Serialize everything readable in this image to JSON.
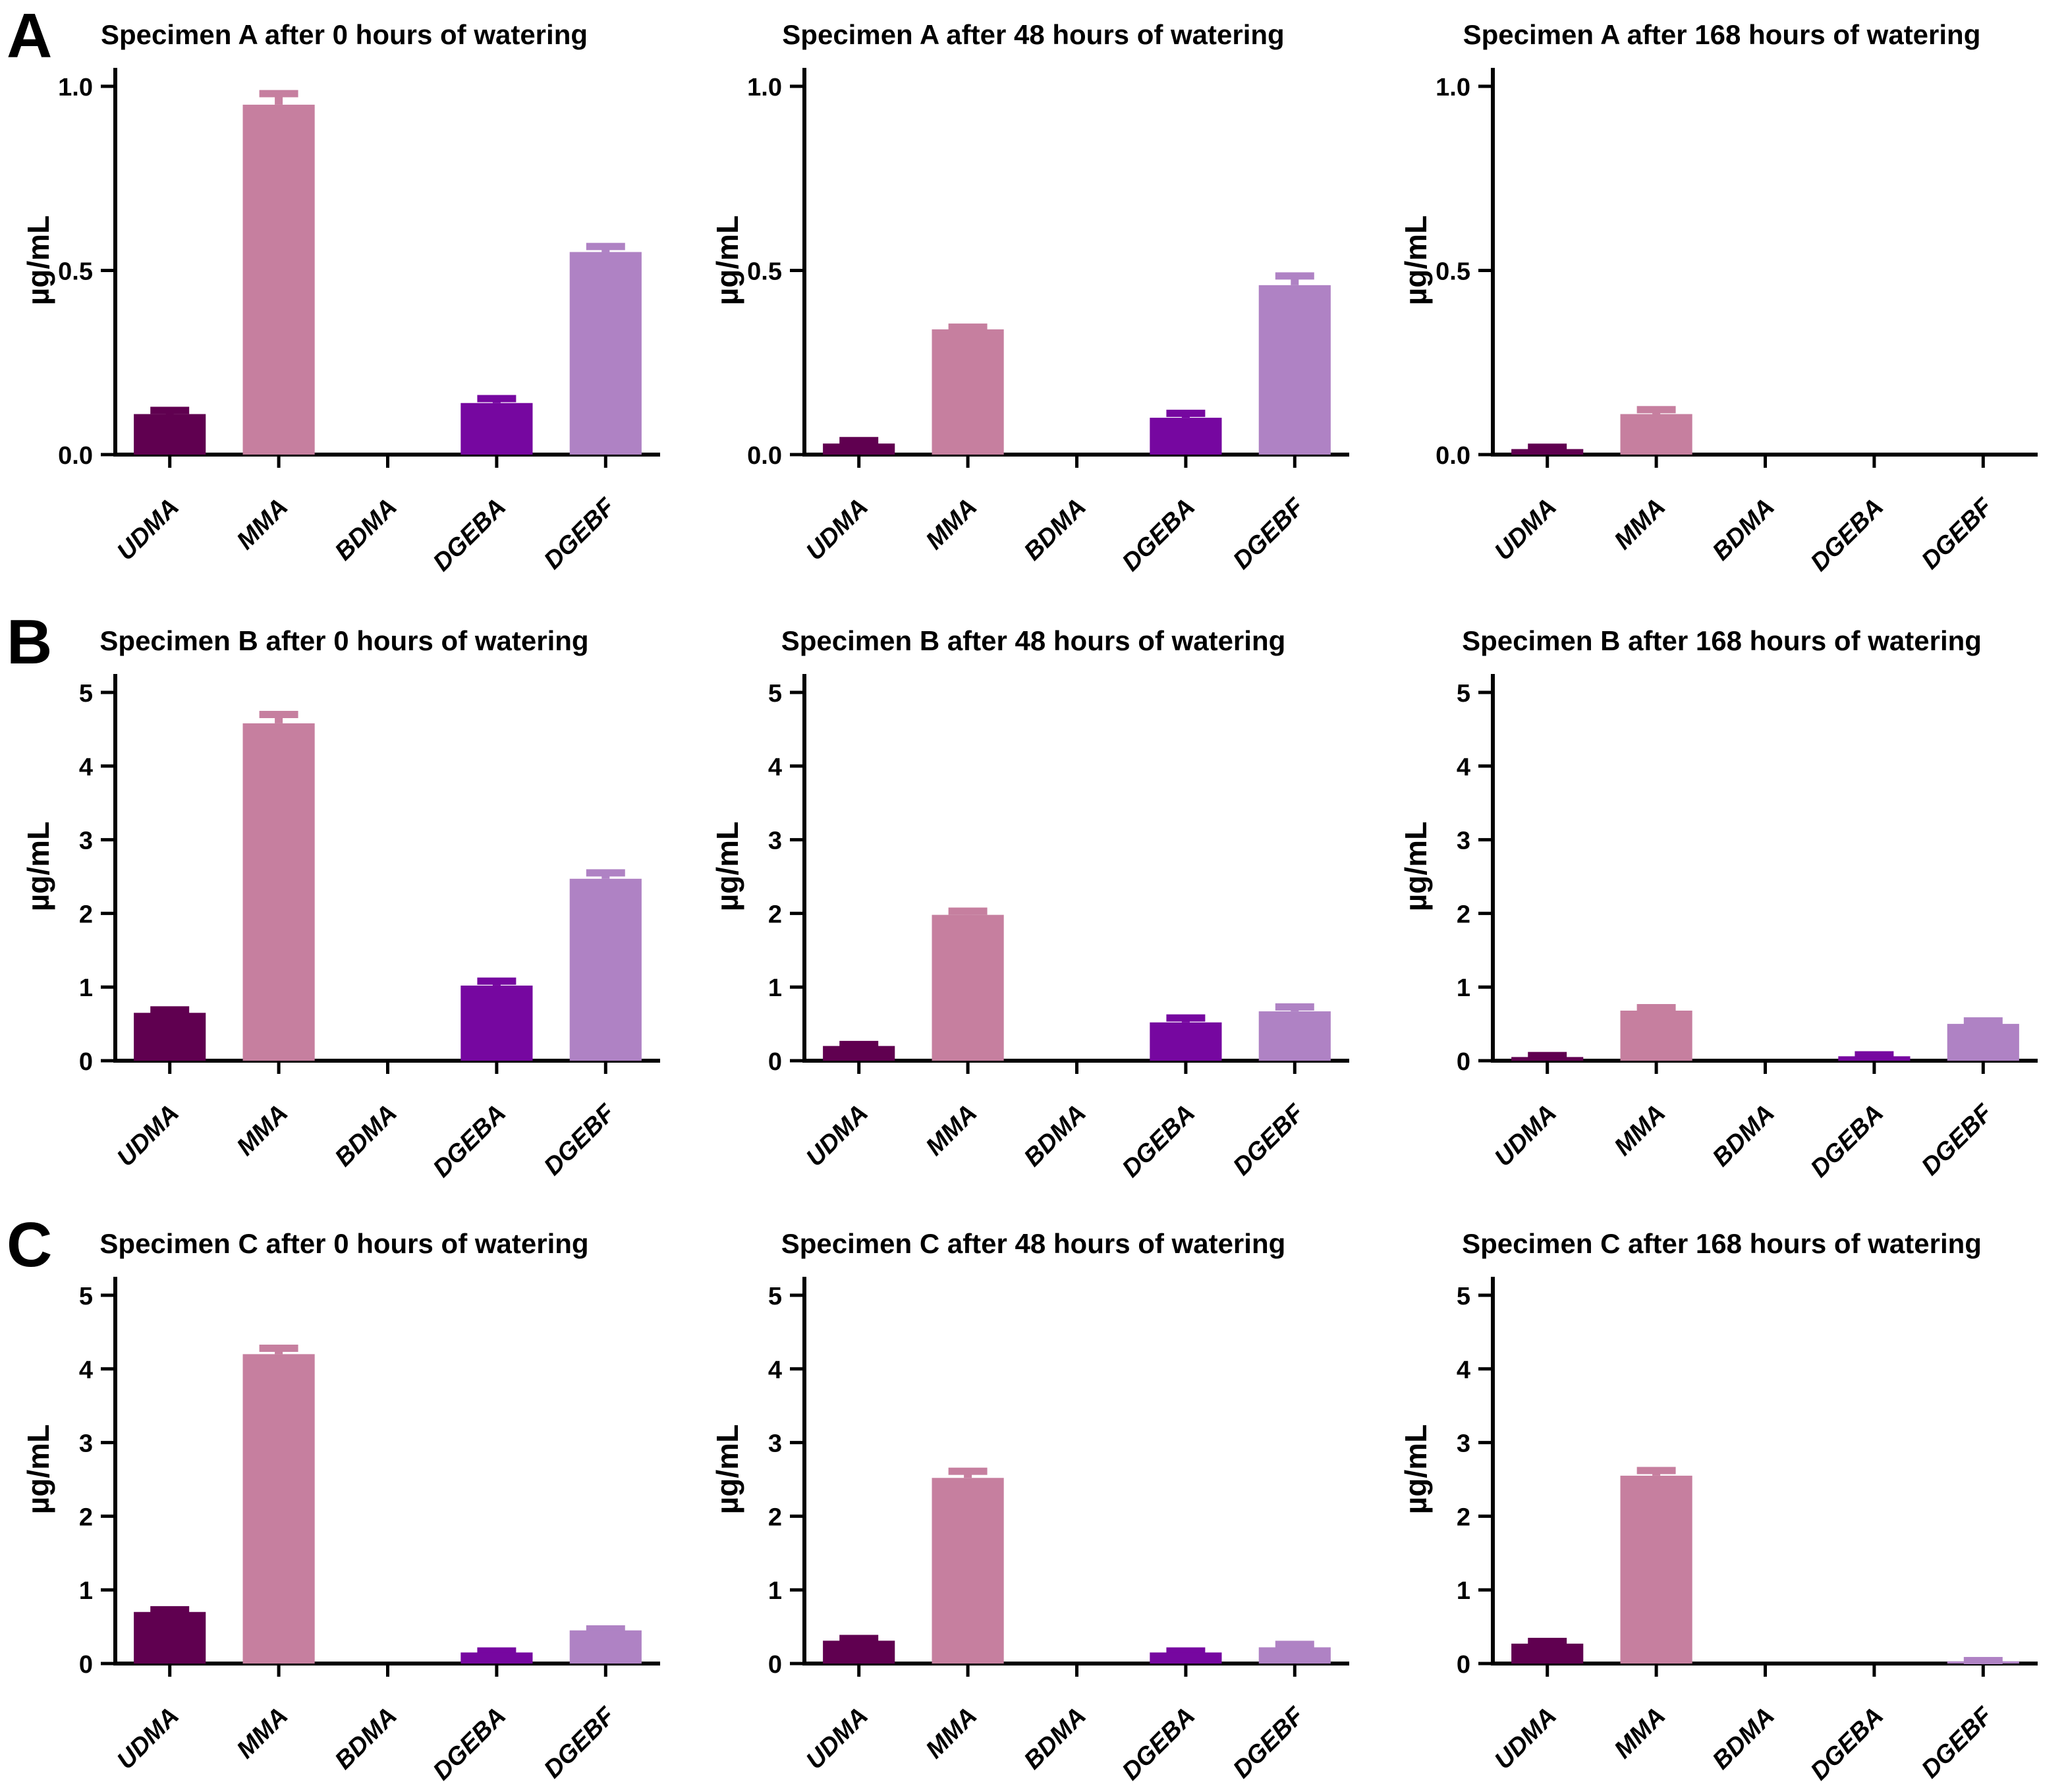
{
  "style": {
    "background": "#ffffff",
    "axis_color": "#000000",
    "text_color": "#000000",
    "error_bar_style": "same-color-as-bar"
  },
  "bar_colors": {
    "UDMA": "#600050",
    "MMA": "#C67F9F",
    "BDMA": null,
    "DGEBA": "#7607A0",
    "DGEBF": "#AF82C4"
  },
  "panels": [
    {
      "label": "A"
    },
    {
      "label": "B"
    },
    {
      "label": "C"
    }
  ],
  "chart_data": [
    {
      "type": "bar",
      "title": "Specimen A after 0 hours of watering",
      "ylabel": "µg/mL",
      "categories": [
        "UDMA",
        "MMA",
        "BDMA",
        "DGEBA",
        "DGEBF"
      ],
      "values": [
        0.11,
        0.95,
        0,
        0.14,
        0.55
      ],
      "errors": [
        0.01,
        0.03,
        0,
        0.012,
        0.015
      ],
      "ylim": [
        0,
        1.05
      ],
      "yticks": [
        0,
        0.5,
        1.0
      ],
      "ytick_labels": [
        "0.0",
        "0.5",
        "1.0"
      ],
      "grid": false,
      "legend": "none"
    },
    {
      "type": "bar",
      "title": "Specimen A after 48 hours of watering",
      "ylabel": "µg/mL",
      "categories": [
        "UDMA",
        "MMA",
        "BDMA",
        "DGEBA",
        "DGEBF"
      ],
      "values": [
        0.03,
        0.34,
        0,
        0.1,
        0.46
      ],
      "errors": [
        0.008,
        0.006,
        0,
        0.012,
        0.025
      ],
      "ylim": [
        0,
        1.05
      ],
      "yticks": [
        0,
        0.5,
        1.0
      ],
      "ytick_labels": [
        "0.0",
        "0.5",
        "1.0"
      ],
      "grid": false,
      "legend": "none"
    },
    {
      "type": "bar",
      "title": "Specimen A after 168 hours of watering",
      "ylabel": "µg/mL",
      "categories": [
        "UDMA",
        "MMA",
        "BDMA",
        "DGEBA",
        "DGEBF"
      ],
      "values": [
        0.015,
        0.11,
        0,
        0,
        0
      ],
      "errors": [
        0.005,
        0.012,
        0,
        0,
        0
      ],
      "ylim": [
        0,
        1.05
      ],
      "yticks": [
        0,
        0.5,
        1.0
      ],
      "ytick_labels": [
        "0.0",
        "0.5",
        "1.0"
      ],
      "grid": false,
      "legend": "none"
    },
    {
      "type": "bar",
      "title": "Specimen B after 0 hours of watering",
      "ylabel": "µg/mL",
      "categories": [
        "UDMA",
        "MMA",
        "BDMA",
        "DGEBA",
        "DGEBF"
      ],
      "values": [
        0.65,
        4.58,
        0,
        1.02,
        2.47
      ],
      "errors": [
        0.04,
        0.12,
        0,
        0.06,
        0.08
      ],
      "ylim": [
        0,
        5.25
      ],
      "yticks": [
        0,
        1,
        2,
        3,
        4,
        5
      ],
      "ytick_labels": [
        "0",
        "1",
        "2",
        "3",
        "4",
        "5"
      ],
      "grid": false,
      "legend": "none"
    },
    {
      "type": "bar",
      "title": "Specimen B after 48 hours of watering",
      "ylabel": "µg/mL",
      "categories": [
        "UDMA",
        "MMA",
        "BDMA",
        "DGEBA",
        "DGEBF"
      ],
      "values": [
        0.2,
        1.98,
        0,
        0.52,
        0.67
      ],
      "errors": [
        0.02,
        0.05,
        0,
        0.06,
        0.06
      ],
      "ylim": [
        0,
        5.25
      ],
      "yticks": [
        0,
        1,
        2,
        3,
        4,
        5
      ],
      "ytick_labels": [
        "0",
        "1",
        "2",
        "3",
        "4",
        "5"
      ],
      "grid": false,
      "legend": "none"
    },
    {
      "type": "bar",
      "title": "Specimen B after 168 hours of watering",
      "ylabel": "µg/mL",
      "categories": [
        "UDMA",
        "MMA",
        "BDMA",
        "DGEBA",
        "DGEBF"
      ],
      "values": [
        0.05,
        0.68,
        0,
        0.06,
        0.5
      ],
      "errors": [
        0.02,
        0.04,
        0,
        0.02,
        0.04
      ],
      "ylim": [
        0,
        5.25
      ],
      "yticks": [
        0,
        1,
        2,
        3,
        4,
        5
      ],
      "ytick_labels": [
        "0",
        "1",
        "2",
        "3",
        "4",
        "5"
      ],
      "grid": false,
      "legend": "none"
    },
    {
      "type": "bar",
      "title": "Specimen C after 0 hours of watering",
      "ylabel": "µg/mL",
      "categories": [
        "UDMA",
        "MMA",
        "BDMA",
        "DGEBA",
        "DGEBF"
      ],
      "values": [
        0.7,
        4.2,
        0,
        0.15,
        0.45
      ],
      "errors": [
        0.03,
        0.08,
        0,
        0.02,
        0.02
      ],
      "ylim": [
        0,
        5.25
      ],
      "yticks": [
        0,
        1,
        2,
        3,
        4,
        5
      ],
      "ytick_labels": [
        "0",
        "1",
        "2",
        "3",
        "4",
        "5"
      ],
      "grid": false,
      "legend": "none"
    },
    {
      "type": "bar",
      "title": "Specimen C after 48 hours of watering",
      "ylabel": "µg/mL",
      "categories": [
        "UDMA",
        "MMA",
        "BDMA",
        "DGEBA",
        "DGEBF"
      ],
      "values": [
        0.31,
        2.52,
        0,
        0.15,
        0.22
      ],
      "errors": [
        0.03,
        0.09,
        0,
        0.02,
        0.04
      ],
      "ylim": [
        0,
        5.25
      ],
      "yticks": [
        0,
        1,
        2,
        3,
        4,
        5
      ],
      "ytick_labels": [
        "0",
        "1",
        "2",
        "3",
        "4",
        "5"
      ],
      "grid": false,
      "legend": "none"
    },
    {
      "type": "bar",
      "title": "Specimen C after 168 hours of watering",
      "ylabel": "µg/mL",
      "categories": [
        "UDMA",
        "MMA",
        "BDMA",
        "DGEBA",
        "DGEBF"
      ],
      "values": [
        0.27,
        2.55,
        0,
        0,
        0.03
      ],
      "errors": [
        0.03,
        0.07,
        0,
        0,
        0.01
      ],
      "ylim": [
        0,
        5.25
      ],
      "yticks": [
        0,
        1,
        2,
        3,
        4,
        5
      ],
      "ytick_labels": [
        "0",
        "1",
        "2",
        "3",
        "4",
        "5"
      ],
      "grid": false,
      "legend": "none"
    }
  ]
}
